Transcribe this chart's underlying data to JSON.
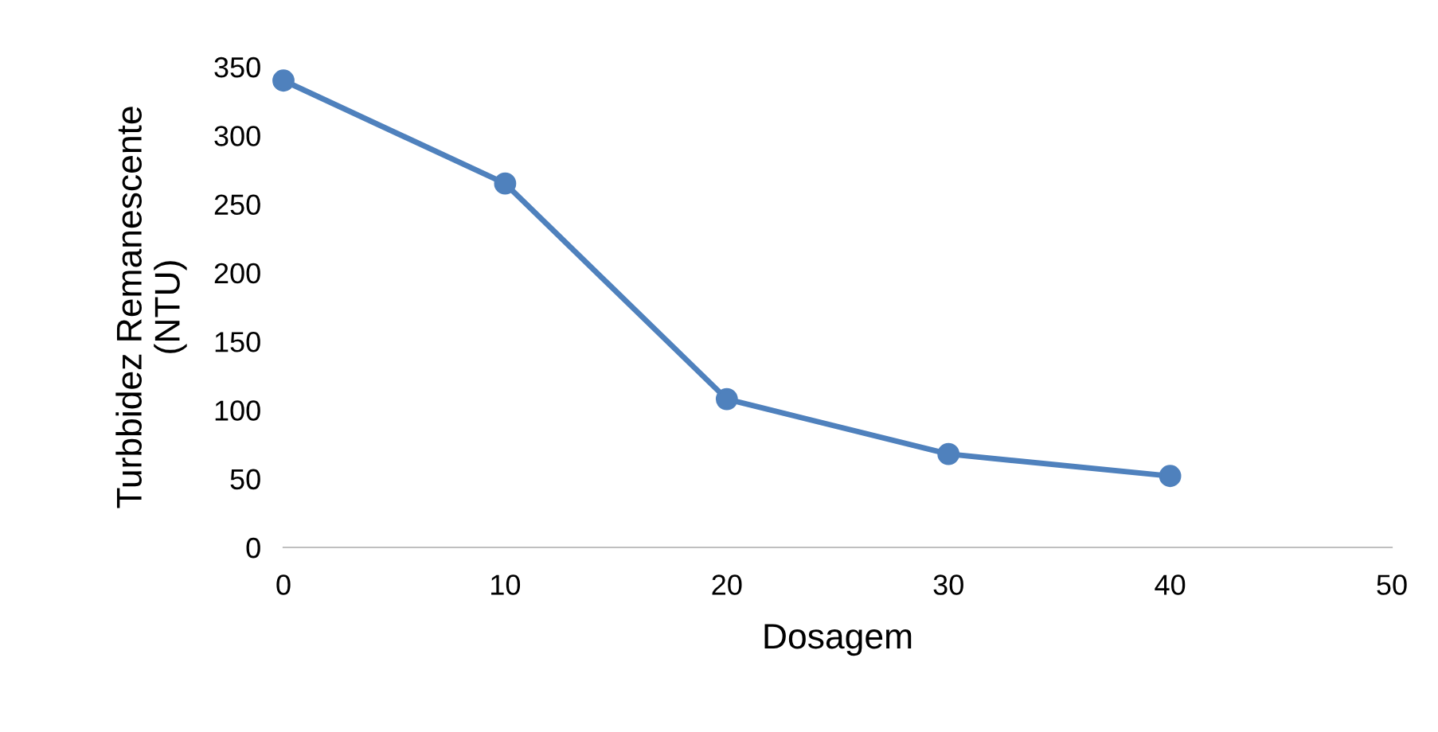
{
  "chart_data": {
    "type": "line",
    "xlabel": "Dosagem",
    "ylabel": "Turbbidez Remanescente\n(NTU)",
    "x": [
      0,
      10,
      20,
      30,
      40
    ],
    "series": [
      {
        "color": "#4f81bd",
        "values": [
          340,
          265,
          108,
          68,
          52
        ]
      }
    ],
    "xlim": [
      0,
      50
    ],
    "xticks": [
      0,
      10,
      20,
      30,
      40,
      50
    ],
    "ylim": [
      0,
      350
    ],
    "yticks": [
      0,
      50,
      100,
      150,
      200,
      250,
      300,
      350
    ],
    "grid": false,
    "legend": false,
    "marker": "circle",
    "line_style": "solid"
  }
}
